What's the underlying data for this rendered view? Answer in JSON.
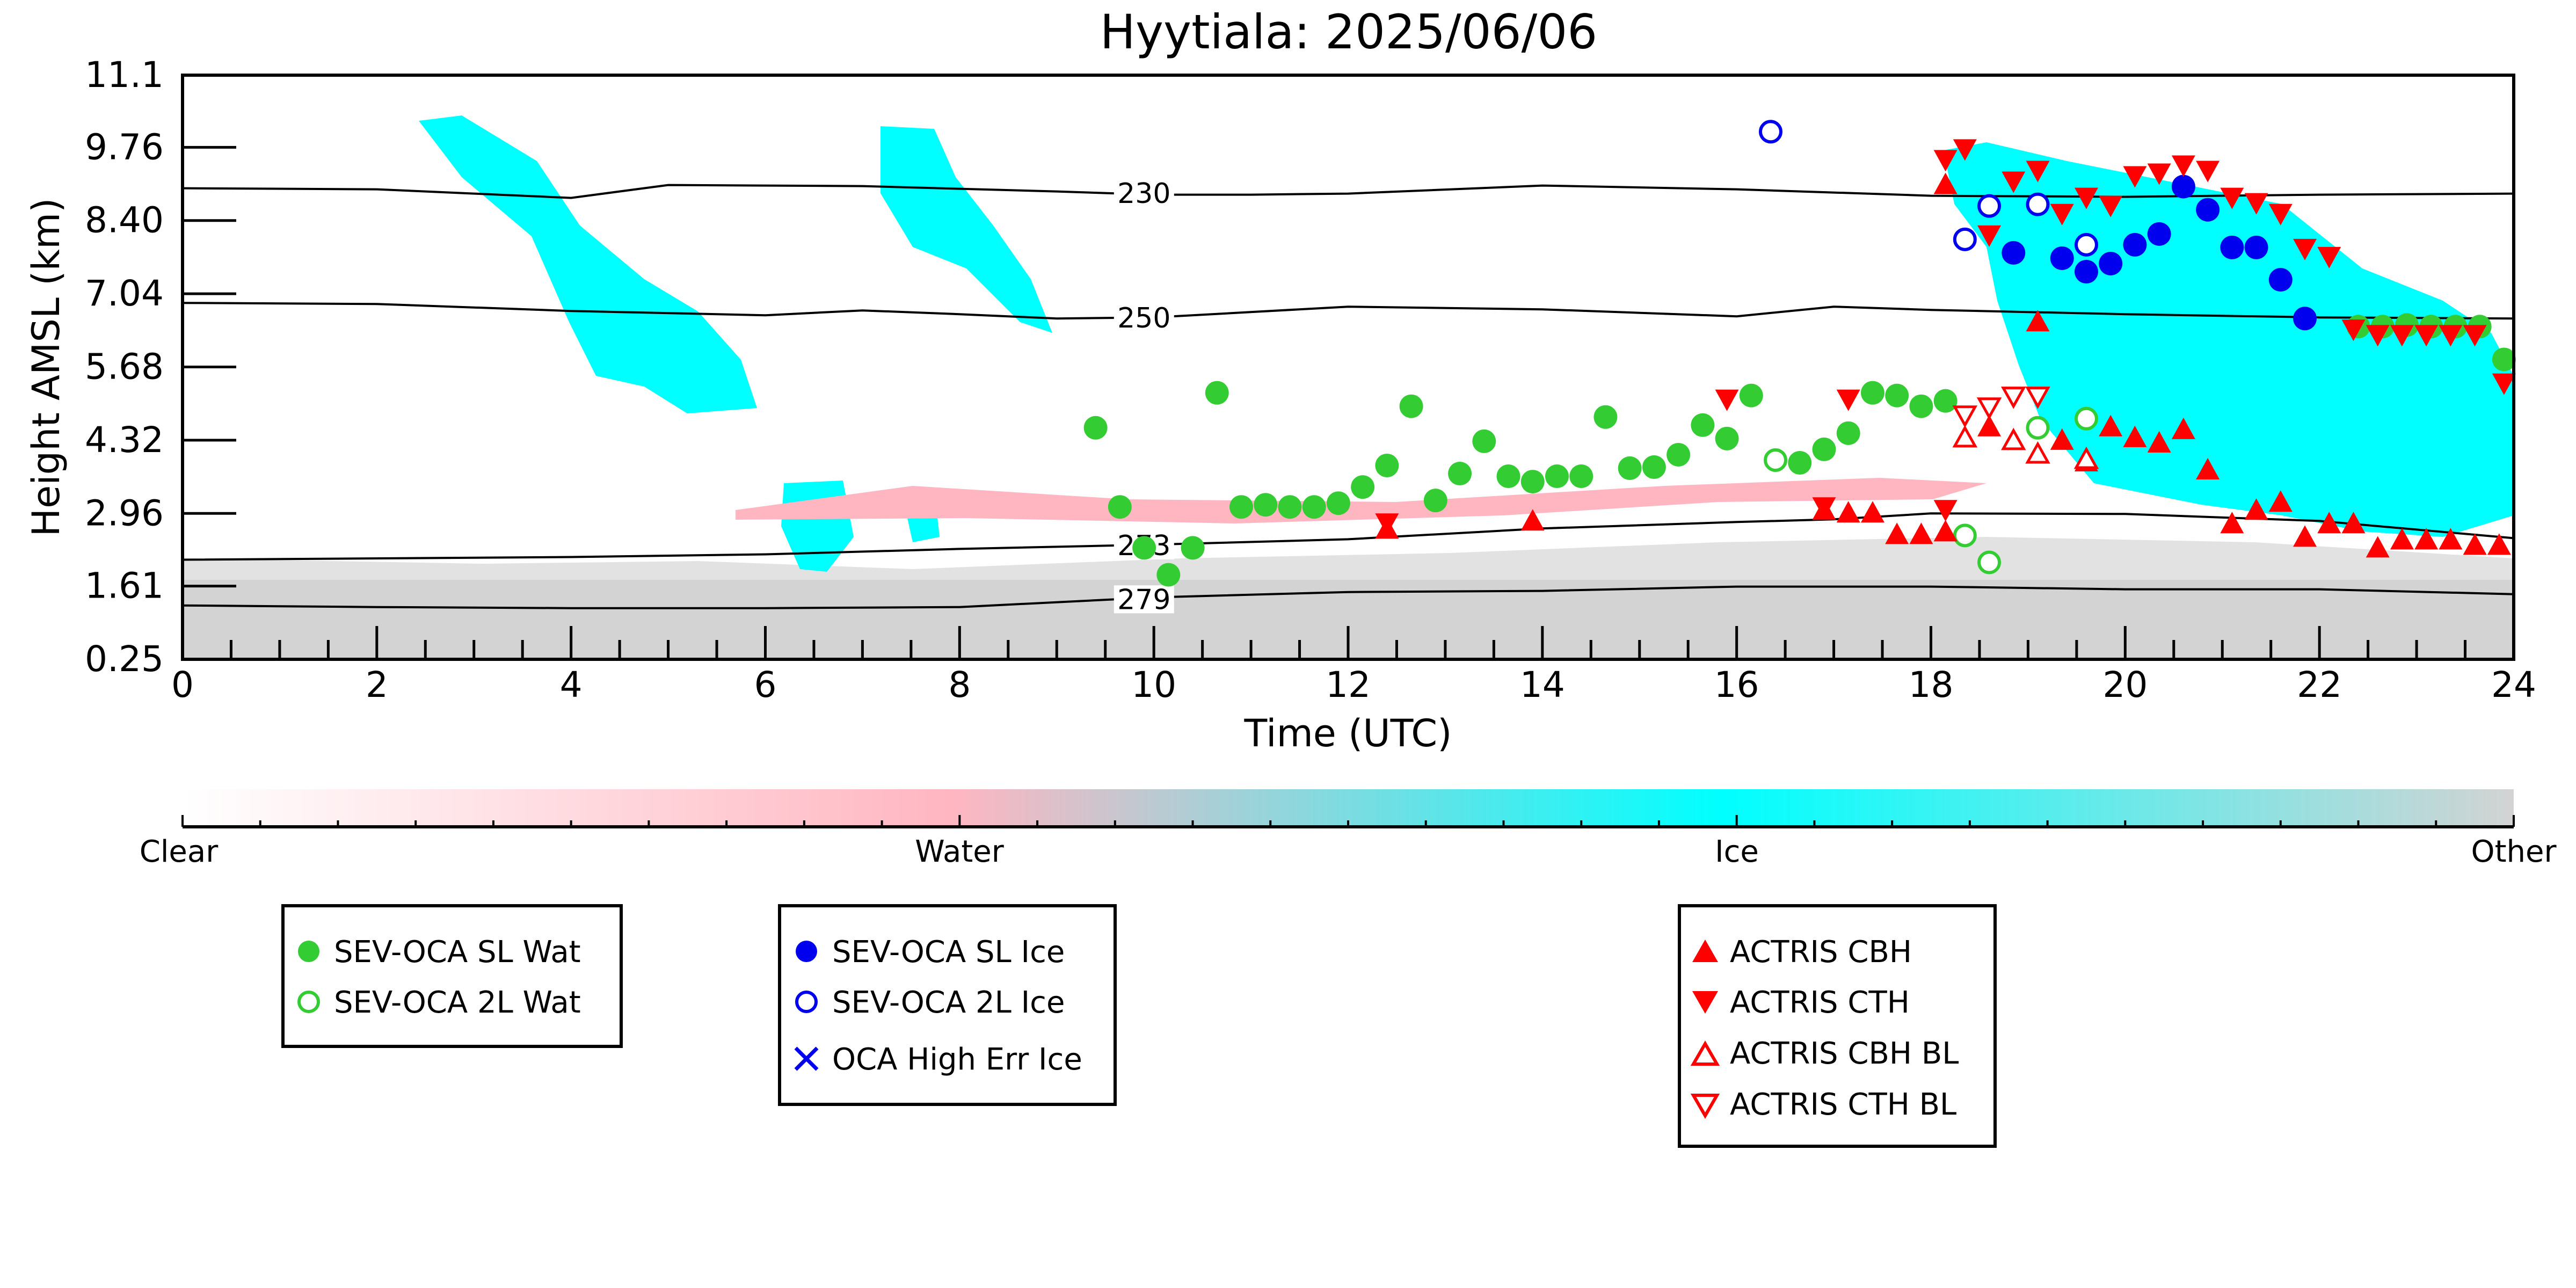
{
  "chart_data": {
    "type": "scatter",
    "title": "Hyytiala: 2025/06/06",
    "xlabel": "Time (UTC)",
    "ylabel": "Height AMSL (km)",
    "xlim": [
      0,
      24
    ],
    "ylim": [
      0.25,
      11.1
    ],
    "x_ticks": [
      "0",
      "2",
      "4",
      "6",
      "8",
      "10",
      "12",
      "14",
      "16",
      "18",
      "20",
      "22",
      "24"
    ],
    "y_ticks": [
      "0.25",
      "1.61",
      "2.96",
      "4.32",
      "5.68",
      "7.04",
      "8.40",
      "9.76",
      "11.1"
    ],
    "y_tick_values": [
      0.25,
      1.61,
      2.96,
      4.32,
      5.68,
      7.04,
      8.4,
      9.76,
      11.1
    ],
    "colorbar": {
      "labels": [
        "Clear",
        "Water",
        "Ice",
        "Other"
      ],
      "colors": {
        "clear": "#ffffff",
        "water": "#ffb6c1",
        "ice": "#00ffff",
        "other": "#d3d3d3"
      }
    },
    "temperature_contours": [
      {
        "label": "230",
        "label_x": 9.6,
        "points": [
          [
            0,
            9.0
          ],
          [
            2,
            8.98
          ],
          [
            3,
            8.9
          ],
          [
            4,
            8.82
          ],
          [
            5,
            9.06
          ],
          [
            7,
            9.04
          ],
          [
            9,
            8.94
          ],
          [
            10,
            8.88
          ],
          [
            11,
            8.88
          ],
          [
            12,
            8.9
          ],
          [
            14,
            9.05
          ],
          [
            16,
            8.98
          ],
          [
            18,
            8.86
          ],
          [
            20,
            8.84
          ],
          [
            22,
            8.88
          ],
          [
            24,
            8.9
          ]
        ]
      },
      {
        "label": "250",
        "label_x": 9.6,
        "points": [
          [
            0,
            6.87
          ],
          [
            2,
            6.85
          ],
          [
            4,
            6.72
          ],
          [
            6,
            6.64
          ],
          [
            7,
            6.73
          ],
          [
            8,
            6.66
          ],
          [
            9,
            6.58
          ],
          [
            10,
            6.6
          ],
          [
            12,
            6.8
          ],
          [
            14,
            6.75
          ],
          [
            16,
            6.62
          ],
          [
            17,
            6.8
          ],
          [
            18,
            6.74
          ],
          [
            20,
            6.66
          ],
          [
            22,
            6.6
          ],
          [
            24,
            6.58
          ]
        ]
      },
      {
        "label": "273",
        "label_x": 9.6,
        "points": [
          [
            0,
            2.1
          ],
          [
            4,
            2.15
          ],
          [
            6,
            2.2
          ],
          [
            8,
            2.3
          ],
          [
            10,
            2.38
          ],
          [
            12,
            2.48
          ],
          [
            14,
            2.68
          ],
          [
            16,
            2.8
          ],
          [
            17,
            2.85
          ],
          [
            18,
            2.96
          ],
          [
            20,
            2.95
          ],
          [
            22,
            2.82
          ],
          [
            24,
            2.5
          ]
        ]
      },
      {
        "label": "279",
        "label_x": 9.6,
        "points": [
          [
            0,
            1.25
          ],
          [
            2,
            1.22
          ],
          [
            4,
            1.2
          ],
          [
            6,
            1.2
          ],
          [
            8,
            1.22
          ],
          [
            10,
            1.4
          ],
          [
            12,
            1.5
          ],
          [
            14,
            1.52
          ],
          [
            16,
            1.6
          ],
          [
            18,
            1.6
          ],
          [
            20,
            1.55
          ],
          [
            22,
            1.55
          ],
          [
            24,
            1.46
          ]
        ]
      }
    ],
    "series": [
      {
        "name": "SEV-OCA SL Wat",
        "marker": "circle-filled",
        "color": "#33cc33",
        "points": [
          [
            9.4,
            4.55
          ],
          [
            9.65,
            3.08
          ],
          [
            9.9,
            2.32
          ],
          [
            10.15,
            1.82
          ],
          [
            10.4,
            2.32
          ],
          [
            10.65,
            5.2
          ],
          [
            10.9,
            3.08
          ],
          [
            11.15,
            3.12
          ],
          [
            11.4,
            3.08
          ],
          [
            11.65,
            3.08
          ],
          [
            11.9,
            3.15
          ],
          [
            12.15,
            3.45
          ],
          [
            12.4,
            3.85
          ],
          [
            12.65,
            4.95
          ],
          [
            12.9,
            3.2
          ],
          [
            13.15,
            3.7
          ],
          [
            13.4,
            4.3
          ],
          [
            13.65,
            3.65
          ],
          [
            13.9,
            3.55
          ],
          [
            14.15,
            3.65
          ],
          [
            14.4,
            3.65
          ],
          [
            14.65,
            4.75
          ],
          [
            14.9,
            3.8
          ],
          [
            15.15,
            3.82
          ],
          [
            15.4,
            4.05
          ],
          [
            15.65,
            4.6
          ],
          [
            15.9,
            4.35
          ],
          [
            16.15,
            5.15
          ],
          [
            16.65,
            3.9
          ],
          [
            16.9,
            4.15
          ],
          [
            17.15,
            4.45
          ],
          [
            17.4,
            5.2
          ],
          [
            17.65,
            5.15
          ],
          [
            17.9,
            4.95
          ],
          [
            18.15,
            5.05
          ],
          [
            22.4,
            6.43
          ],
          [
            22.65,
            6.43
          ],
          [
            22.9,
            6.46
          ],
          [
            23.15,
            6.43
          ],
          [
            23.4,
            6.43
          ],
          [
            23.65,
            6.43
          ],
          [
            23.9,
            5.82
          ]
        ]
      },
      {
        "name": "SEV-OCA 2L Wat",
        "marker": "circle-open",
        "color": "#33cc33",
        "points": [
          [
            16.4,
            3.95
          ],
          [
            18.35,
            2.55
          ],
          [
            18.6,
            2.05
          ],
          [
            19.1,
            4.55
          ],
          [
            19.6,
            4.72
          ]
        ]
      },
      {
        "name": "SEV-OCA SL Ice",
        "marker": "circle-filled",
        "color": "#0000ee",
        "points": [
          [
            18.85,
            7.8
          ],
          [
            19.35,
            7.7
          ],
          [
            19.6,
            7.45
          ],
          [
            19.85,
            7.6
          ],
          [
            20.1,
            7.95
          ],
          [
            20.35,
            8.15
          ],
          [
            20.6,
            9.03
          ],
          [
            20.85,
            8.6
          ],
          [
            21.1,
            7.9
          ],
          [
            21.35,
            7.9
          ],
          [
            21.6,
            7.3
          ],
          [
            21.85,
            6.58
          ]
        ]
      },
      {
        "name": "SEV-OCA 2L Ice",
        "marker": "circle-open",
        "color": "#0000ee",
        "points": [
          [
            16.35,
            10.05
          ],
          [
            18.35,
            8.05
          ],
          [
            18.6,
            8.67
          ],
          [
            19.1,
            8.7
          ],
          [
            19.6,
            7.95
          ]
        ]
      },
      {
        "name": "OCA High Err Ice",
        "marker": "x",
        "color": "#0000ee",
        "points": []
      },
      {
        "name": "ACTRIS CBH",
        "marker": "triangle-up-filled",
        "color": "#ff0000",
        "points": [
          [
            12.4,
            2.65
          ],
          [
            13.9,
            2.8
          ],
          [
            16.9,
            3.0
          ],
          [
            17.15,
            2.95
          ],
          [
            17.4,
            2.95
          ],
          [
            17.65,
            2.55
          ],
          [
            17.9,
            2.55
          ],
          [
            18.15,
            2.6
          ],
          [
            18.15,
            9.05
          ],
          [
            18.6,
            4.55
          ],
          [
            19.1,
            6.5
          ],
          [
            19.35,
            4.3
          ],
          [
            19.6,
            3.9
          ],
          [
            19.85,
            4.55
          ],
          [
            20.1,
            4.35
          ],
          [
            20.35,
            4.25
          ],
          [
            20.6,
            4.5
          ],
          [
            20.85,
            3.75
          ],
          [
            21.1,
            2.75
          ],
          [
            21.35,
            3.0
          ],
          [
            21.6,
            3.15
          ],
          [
            21.85,
            2.5
          ],
          [
            22.1,
            2.75
          ],
          [
            22.35,
            2.75
          ],
          [
            22.6,
            2.3
          ],
          [
            22.85,
            2.45
          ],
          [
            23.1,
            2.45
          ],
          [
            23.35,
            2.45
          ],
          [
            23.6,
            2.35
          ],
          [
            23.85,
            2.35
          ]
        ]
      },
      {
        "name": "ACTRIS CTH",
        "marker": "triangle-down-filled",
        "color": "#ff0000",
        "points": [
          [
            12.4,
            2.8
          ],
          [
            15.9,
            5.1
          ],
          [
            16.9,
            3.1
          ],
          [
            17.15,
            5.1
          ],
          [
            18.15,
            3.05
          ],
          [
            18.15,
            9.55
          ],
          [
            18.35,
            9.75
          ],
          [
            18.6,
            8.15
          ],
          [
            18.85,
            9.15
          ],
          [
            19.1,
            9.35
          ],
          [
            19.35,
            8.55
          ],
          [
            19.6,
            8.85
          ],
          [
            19.85,
            8.7
          ],
          [
            20.1,
            9.25
          ],
          [
            20.35,
            9.3
          ],
          [
            20.6,
            9.45
          ],
          [
            20.85,
            9.35
          ],
          [
            21.1,
            8.85
          ],
          [
            21.35,
            8.75
          ],
          [
            21.6,
            8.55
          ],
          [
            21.85,
            7.9
          ],
          [
            22.1,
            7.75
          ],
          [
            22.35,
            6.4
          ],
          [
            22.6,
            6.3
          ],
          [
            22.85,
            6.3
          ],
          [
            23.1,
            6.3
          ],
          [
            23.35,
            6.3
          ],
          [
            23.6,
            6.3
          ],
          [
            23.9,
            5.4
          ]
        ]
      },
      {
        "name": "ACTRIS CBH BL",
        "marker": "triangle-up-open",
        "color": "#ff0000",
        "points": [
          [
            18.35,
            4.35
          ],
          [
            18.85,
            4.3
          ],
          [
            19.1,
            4.05
          ],
          [
            19.6,
            3.95
          ]
        ]
      },
      {
        "name": "ACTRIS CTH BL",
        "marker": "triangle-down-open",
        "color": "#ff0000",
        "points": [
          [
            18.35,
            4.8
          ],
          [
            18.6,
            4.95
          ],
          [
            18.85,
            5.15
          ],
          [
            19.1,
            5.15
          ]
        ]
      }
    ],
    "legend": {
      "placement": "below",
      "groups": [
        [
          "SEV-OCA SL Wat",
          "SEV-OCA 2L Wat"
        ],
        [
          "SEV-OCA SL Ice",
          "SEV-OCA 2L Ice",
          "OCA High Err Ice"
        ],
        [
          "ACTRIS CBH",
          "ACTRIS CTH",
          "ACTRIS CBH BL",
          "ACTRIS CTH BL"
        ]
      ]
    }
  }
}
